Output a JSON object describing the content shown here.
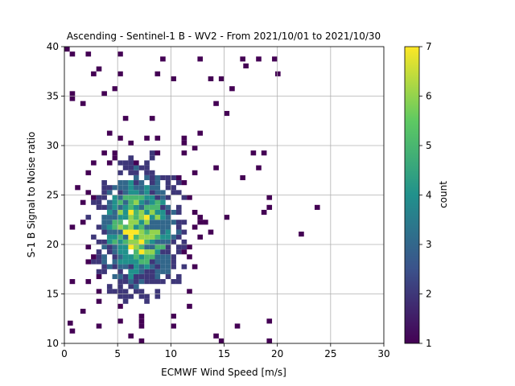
{
  "chart_data": {
    "type": "heatmap",
    "title": "Ascending - Sentinel-1 B - WV2 - From 2021/10/01 to 2021/10/30",
    "xlabel": "ECMWF Wind Speed [m/s]",
    "ylabel": "S-1 B Signal to Noise ratio",
    "xlim": [
      0,
      30
    ],
    "ylim": [
      10,
      40
    ],
    "xticks": [
      0,
      5,
      10,
      15,
      20,
      25,
      30
    ],
    "yticks": [
      10,
      15,
      20,
      25,
      30,
      35,
      40
    ],
    "grid": true,
    "bin_size": {
      "x": 0.5,
      "y": 0.5
    },
    "colorbar": {
      "label": "count",
      "min": 1,
      "max": 7,
      "ticks": [
        1,
        2,
        3,
        4,
        5,
        6,
        7
      ],
      "colormap": "viridis"
    },
    "density_core": {
      "center_x": 7.0,
      "center_y": 21.5,
      "spread_x": 2.3,
      "spread_y": 3.6,
      "peak_count": 7
    },
    "outliers": [
      {
        "x": 23.5,
        "y": 23.5,
        "count": 1
      },
      {
        "x": 22.0,
        "y": 20.8,
        "count": 1
      },
      {
        "x": 19.8,
        "y": 37.0,
        "count": 1
      },
      {
        "x": 17.5,
        "y": 29.0,
        "count": 1
      },
      {
        "x": 18.5,
        "y": 23.0,
        "count": 1
      },
      {
        "x": 0.5,
        "y": 34.5,
        "count": 1
      },
      {
        "x": 0.3,
        "y": 11.8,
        "count": 1
      },
      {
        "x": 16.8,
        "y": 37.8,
        "count": 1
      }
    ]
  },
  "colors": {
    "viridis": [
      "#440154",
      "#3b528b",
      "#21918c",
      "#5ec962",
      "#fde725"
    ],
    "grid": "#b0b0b0",
    "axes": "#000000"
  }
}
